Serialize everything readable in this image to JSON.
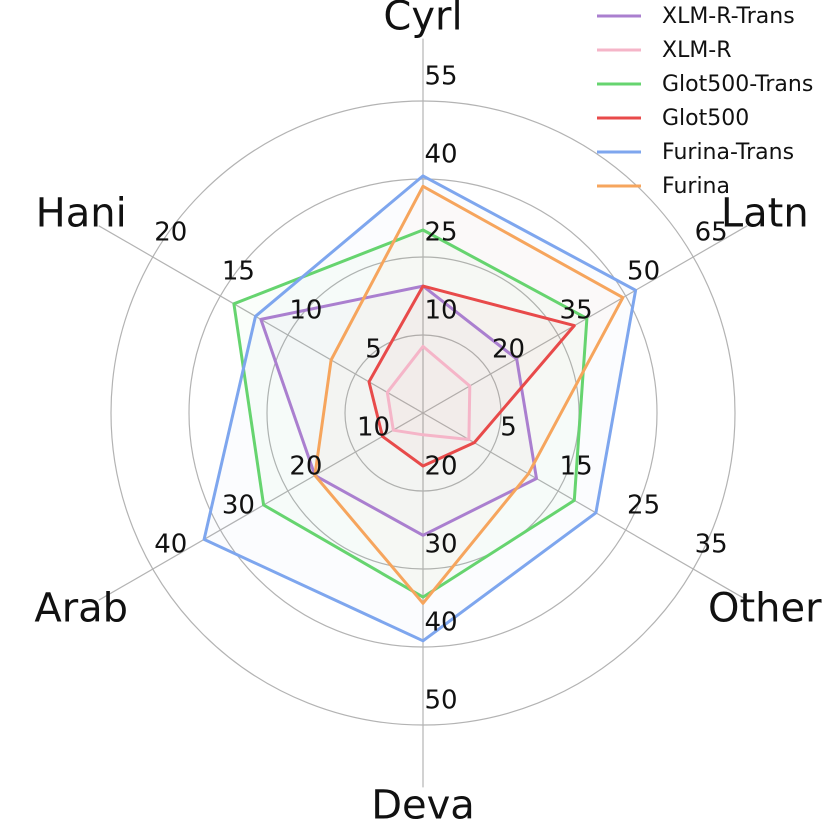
{
  "chart_data": {
    "type": "radar",
    "axes": [
      "Cyrl",
      "Latn",
      "Other",
      "Deva",
      "Arab",
      "Hani"
    ],
    "tick_labels": {
      "Cyrl": [
        "10",
        "25",
        "40",
        "55"
      ],
      "Latn": [
        "20",
        "35",
        "50",
        "65"
      ],
      "Other": [
        "5",
        "15",
        "25",
        "35"
      ],
      "Deva": [
        "20",
        "30",
        "40",
        "50"
      ],
      "Arab": [
        "10",
        "20",
        "30",
        "40"
      ],
      "Hani": [
        "5",
        "10",
        "15",
        "20"
      ]
    },
    "axis_ranges": {
      "Cyrl": [
        -5,
        70
      ],
      "Latn": [
        5,
        80
      ],
      "Other": [
        -5,
        45
      ],
      "Deva": [
        10,
        60
      ],
      "Arab": [
        0,
        50
      ],
      "Hani": [
        0,
        25
      ]
    },
    "series": [
      {
        "name": "XLM-R-Trans",
        "color": "#aa7fcf",
        "values": [
          25.5,
          31,
          16,
          29.6,
          20,
          15
        ]
      },
      {
        "name": "XLM-R",
        "color": "#f5b5c8",
        "values": [
          11,
          18,
          3.5,
          13.5,
          5.5,
          3.3
        ]
      },
      {
        "name": "Glot500-Trans",
        "color": "#66d46f",
        "values": [
          39,
          50.5,
          23,
          39.5,
          29.5,
          17.5
        ]
      },
      {
        "name": "Glot500",
        "color": "#e84a4a",
        "values": [
          25.5,
          47,
          4.5,
          18.5,
          7.5,
          5
        ]
      },
      {
        "name": "Furina-Trans",
        "color": "#7ea6ee",
        "values": [
          52,
          64,
          27,
          46.5,
          40.5,
          15.5
        ]
      },
      {
        "name": "Furina",
        "color": "#f6a55d",
        "values": [
          49.5,
          60.5,
          14.5,
          40.5,
          20,
          8.5
        ]
      }
    ],
    "legend_position": "top-right",
    "grid": true
  }
}
